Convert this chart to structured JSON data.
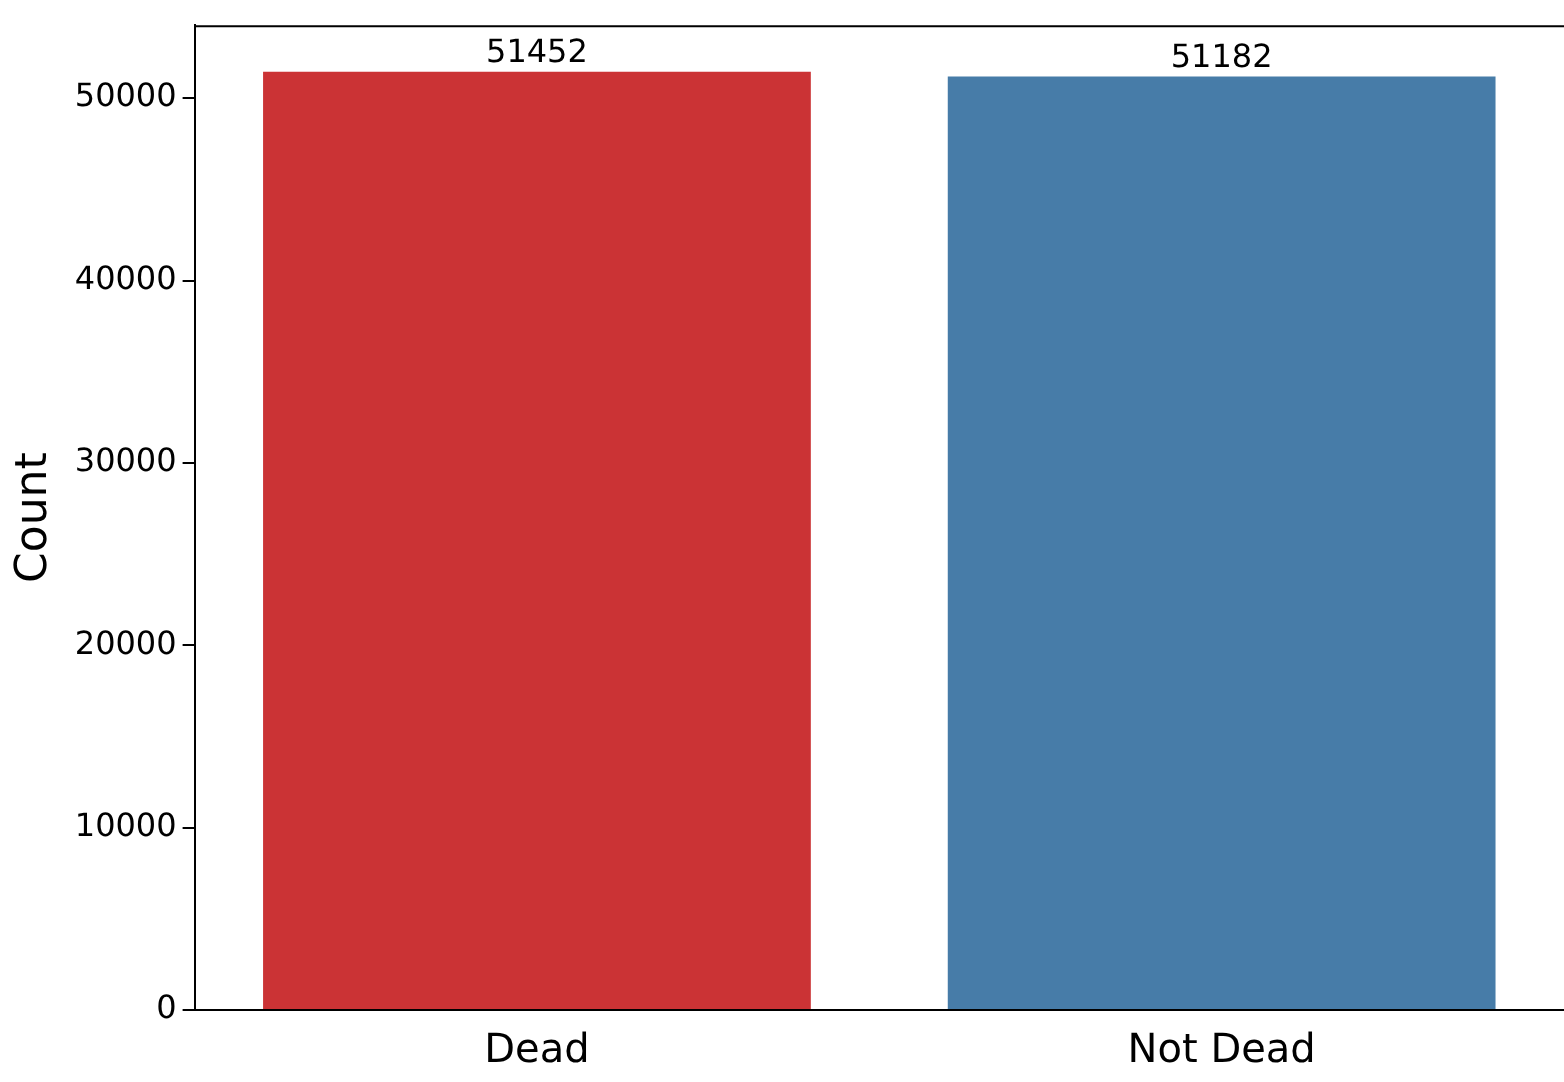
{
  "chart_data": {
    "type": "bar",
    "ylabel": "Count",
    "categories": [
      "Dead",
      "Not Dead"
    ],
    "values": [
      51452,
      51182
    ],
    "colors": [
      "#cb3335",
      "#477ca8"
    ],
    "ylim": [
      0,
      54000
    ],
    "yticks": [
      0,
      10000,
      20000,
      30000,
      40000,
      50000
    ],
    "data_labels": true,
    "grid": false,
    "legend": false
  }
}
